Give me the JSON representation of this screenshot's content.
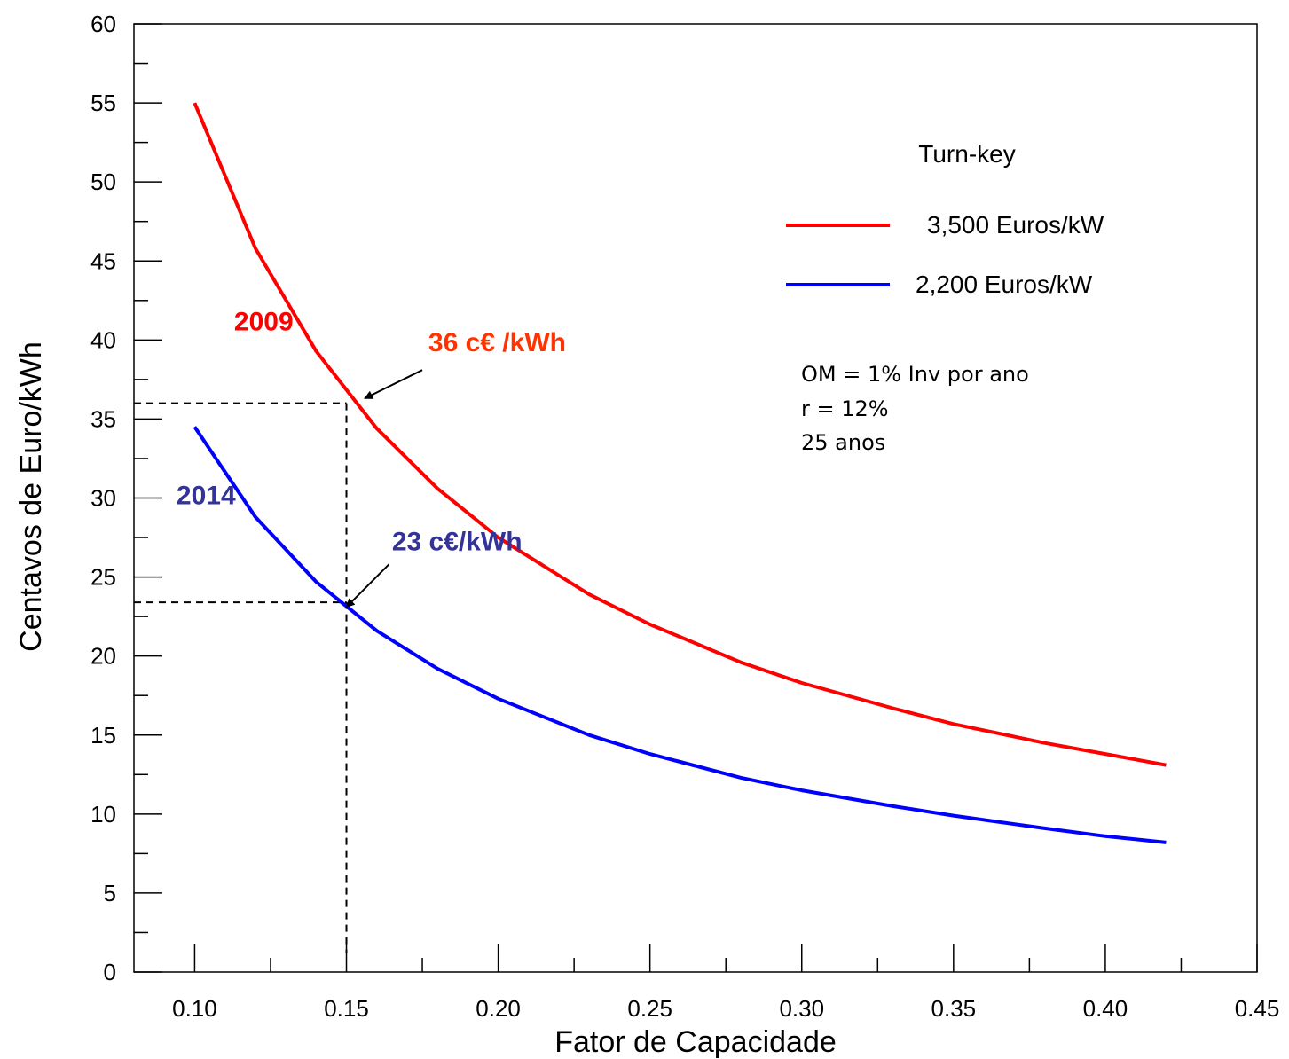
{
  "chart_data": {
    "type": "line",
    "title": "",
    "xlabel": "Fator de Capacidade",
    "ylabel": "Centavos de Euro/kWh",
    "xlim": [
      0.08,
      0.45
    ],
    "ylim": [
      0,
      60
    ],
    "x_ticks": [
      "0.10",
      "0.15",
      "0.20",
      "0.25",
      "0.30",
      "0.35",
      "0.40",
      "0.45"
    ],
    "x_tick_values": [
      0.1,
      0.15,
      0.2,
      0.25,
      0.3,
      0.35,
      0.4,
      0.45
    ],
    "y_ticks": [
      "0",
      "5",
      "10",
      "15",
      "20",
      "25",
      "30",
      "35",
      "40",
      "45",
      "50",
      "55",
      "60"
    ],
    "y_tick_values": [
      0,
      5,
      10,
      15,
      20,
      25,
      30,
      35,
      40,
      45,
      50,
      55,
      60
    ],
    "grid": false,
    "legend_position": "top-right",
    "legend_title": "Turn-key",
    "series": [
      {
        "name": "3,500 Euros/kW",
        "color": "#ff0000",
        "x": [
          0.1,
          0.12,
          0.14,
          0.16,
          0.18,
          0.2,
          0.23,
          0.25,
          0.28,
          0.3,
          0.33,
          0.35,
          0.38,
          0.4,
          0.42
        ],
        "y": [
          55.0,
          45.8,
          39.3,
          34.4,
          30.6,
          27.5,
          23.9,
          22.0,
          19.6,
          18.3,
          16.7,
          15.7,
          14.5,
          13.8,
          13.1
        ]
      },
      {
        "name": "2,200 Euros/kW",
        "color": "#0000ff",
        "x": [
          0.1,
          0.12,
          0.14,
          0.16,
          0.18,
          0.2,
          0.23,
          0.25,
          0.28,
          0.3,
          0.33,
          0.35,
          0.38,
          0.4,
          0.42
        ],
        "y": [
          34.5,
          28.8,
          24.7,
          21.6,
          19.2,
          17.3,
          15.0,
          13.8,
          12.3,
          11.5,
          10.5,
          9.9,
          9.1,
          8.6,
          8.2
        ]
      }
    ],
    "year_labels": [
      {
        "text": "2009",
        "x": 0.113,
        "y": 40.6,
        "color": "#ff0000"
      },
      {
        "text": "2014",
        "x": 0.094,
        "y": 29.6,
        "color": "#333399"
      }
    ],
    "reference_lines": [
      {
        "x": 0.15,
        "y": 36.0
      },
      {
        "x": 0.15,
        "y": 23.4
      }
    ],
    "callouts": [
      {
        "text": "36 c€ /kWh",
        "color": "#ff3300",
        "text_x": 0.177,
        "text_y": 39.3,
        "arrow_from": [
          0.175,
          38.1
        ],
        "arrow_to": [
          0.156,
          36.3
        ]
      },
      {
        "text": "23 c€/kWh",
        "color": "#333399",
        "text_x": 0.165,
        "text_y": 26.7,
        "arrow_from": [
          0.164,
          25.8
        ],
        "arrow_to": [
          0.15,
          23.1
        ]
      }
    ],
    "annotation_lines": [
      "OM = 1% Inv por ano",
      "r = 12%",
      "25 anos"
    ]
  }
}
